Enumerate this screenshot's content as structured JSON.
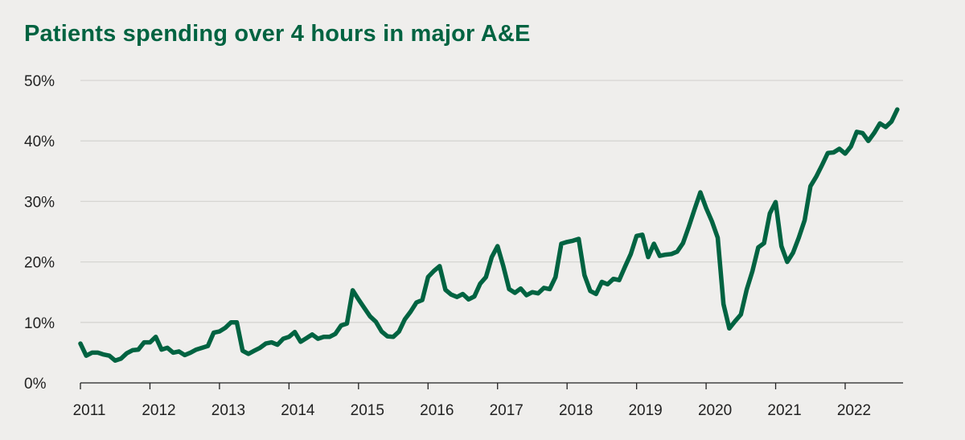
{
  "title": "Patients spending over 4 hours in major A&E",
  "colors": {
    "line": "#006341",
    "grid": "#d6d5d2",
    "axis": "#222222",
    "background": "#efeeec"
  },
  "chart_data": {
    "type": "line",
    "title": "Patients spending over 4 hours in major A&E",
    "xlabel": "",
    "ylabel": "",
    "xlim": [
      2011.0,
      2022.833
    ],
    "ylim": [
      0,
      50
    ],
    "grid": true,
    "y_ticks": [
      0,
      10,
      20,
      30,
      40,
      50
    ],
    "y_tick_labels": [
      "0%",
      "10%",
      "20%",
      "30%",
      "40%",
      "50%"
    ],
    "x_ticks": [
      2011,
      2012,
      2013,
      2014,
      2015,
      2016,
      2017,
      2018,
      2019,
      2020,
      2021,
      2022
    ],
    "x_tick_labels": [
      "2011",
      "2012",
      "2013",
      "2014",
      "2015",
      "2016",
      "2017",
      "2018",
      "2019",
      "2020",
      "2021",
      "2022"
    ],
    "series": [
      {
        "name": "Patients spending over 4 hours in major A&E",
        "x_start": 2011.0,
        "step": 0.0833333,
        "values": [
          6.5,
          4.5,
          5.0,
          5.0,
          4.7,
          4.5,
          3.7,
          4.0,
          4.9,
          5.4,
          5.5,
          6.7,
          6.7,
          7.6,
          5.5,
          5.8,
          5.0,
          5.2,
          4.6,
          5.0,
          5.5,
          5.8,
          6.1,
          8.3,
          8.5,
          9.1,
          10.0,
          10.0,
          5.3,
          4.8,
          5.3,
          5.8,
          6.5,
          6.7,
          6.3,
          7.3,
          7.6,
          8.4,
          6.8,
          7.4,
          8.0,
          7.3,
          7.6,
          7.6,
          8.1,
          9.5,
          9.8,
          15.3,
          13.8,
          12.4,
          11.0,
          10.1,
          8.5,
          7.7,
          7.6,
          8.5,
          10.5,
          11.8,
          13.3,
          13.7,
          17.5,
          18.5,
          19.3,
          15.4,
          14.6,
          14.2,
          14.7,
          13.8,
          14.3,
          16.4,
          17.5,
          20.8,
          22.6,
          19.3,
          15.5,
          14.9,
          15.6,
          14.5,
          15.0,
          14.8,
          15.7,
          15.5,
          17.5,
          23.0,
          23.3,
          23.5,
          23.8,
          17.8,
          15.2,
          14.7,
          16.7,
          16.3,
          17.2,
          17.0,
          19.2,
          21.3,
          24.3,
          24.5,
          20.8,
          23.0,
          21.0,
          21.2,
          21.3,
          21.7,
          23.1,
          25.8,
          28.7,
          31.5,
          28.9,
          26.7,
          24.0,
          13.0,
          9.0,
          10.2,
          11.3,
          15.4,
          18.5,
          22.4,
          23.1,
          28.0,
          29.9,
          22.6,
          20.0,
          21.5,
          24.0,
          26.9,
          32.5,
          34.1,
          36.0,
          38.0,
          38.1,
          38.7,
          37.9,
          39.1,
          41.5,
          41.3,
          40.0,
          41.3,
          42.9,
          42.3,
          43.2,
          45.2
        ]
      }
    ]
  }
}
